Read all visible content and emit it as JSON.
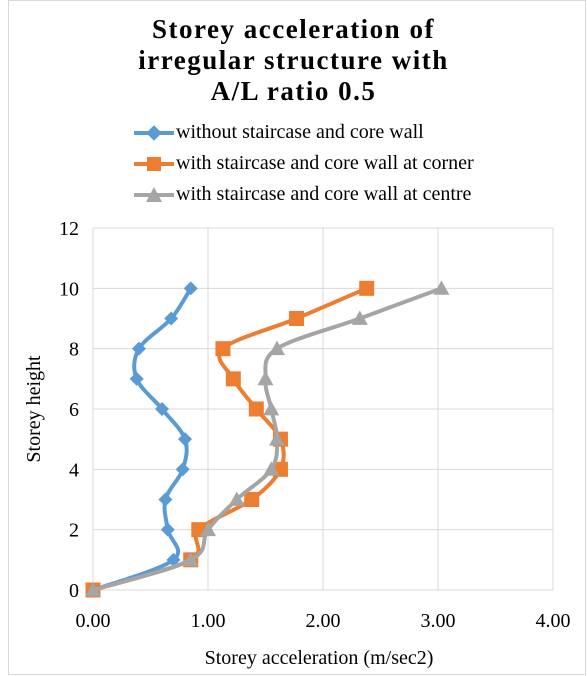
{
  "chart_data": {
    "type": "line",
    "title": "Storey acceleration of irregular structure with A/L ratio 0.5",
    "title_lines": [
      "Storey acceleration of",
      "irregular structure with",
      "A/L ratio 0.5"
    ],
    "xlabel": "Storey acceleration (m/sec2)",
    "ylabel": "Storey height",
    "xlim": [
      0,
      4
    ],
    "ylim": [
      0,
      12
    ],
    "x_ticks": [
      0,
      1,
      2,
      3,
      4
    ],
    "x_tick_labels": [
      "0.00",
      "1.00",
      "2.00",
      "3.00",
      "4.00"
    ],
    "y_ticks": [
      0,
      2,
      4,
      6,
      8,
      10,
      12
    ],
    "y_tick_labels": [
      "0",
      "2",
      "4",
      "6",
      "8",
      "10",
      "12"
    ],
    "grid": true,
    "legend_position": "top",
    "series": [
      {
        "name": "without staircase and core wall",
        "color": "#5b9bd5",
        "marker": "diamond",
        "points": [
          [
            0.0,
            0
          ],
          [
            0.7,
            1
          ],
          [
            0.65,
            2
          ],
          [
            0.63,
            3
          ],
          [
            0.78,
            4
          ],
          [
            0.8,
            5
          ],
          [
            0.6,
            6
          ],
          [
            0.38,
            7
          ],
          [
            0.4,
            8
          ],
          [
            0.68,
            9
          ],
          [
            0.85,
            10
          ]
        ]
      },
      {
        "name": "with staircase and core wall at corner",
        "color": "#ed7d31",
        "marker": "square",
        "points": [
          [
            0.0,
            0
          ],
          [
            0.85,
            1
          ],
          [
            0.92,
            2
          ],
          [
            1.38,
            3
          ],
          [
            1.63,
            4
          ],
          [
            1.63,
            5
          ],
          [
            1.42,
            6
          ],
          [
            1.22,
            7
          ],
          [
            1.13,
            8
          ],
          [
            1.77,
            9
          ],
          [
            2.38,
            10
          ]
        ]
      },
      {
        "name": "with staircase and core wall at centre",
        "color": "#a5a5a5",
        "marker": "triangle",
        "points": [
          [
            0.0,
            0
          ],
          [
            0.85,
            1
          ],
          [
            1.0,
            2
          ],
          [
            1.25,
            3
          ],
          [
            1.55,
            4
          ],
          [
            1.6,
            5
          ],
          [
            1.55,
            6
          ],
          [
            1.5,
            7
          ],
          [
            1.6,
            8
          ],
          [
            2.32,
            9
          ],
          [
            3.03,
            10
          ]
        ]
      }
    ]
  }
}
